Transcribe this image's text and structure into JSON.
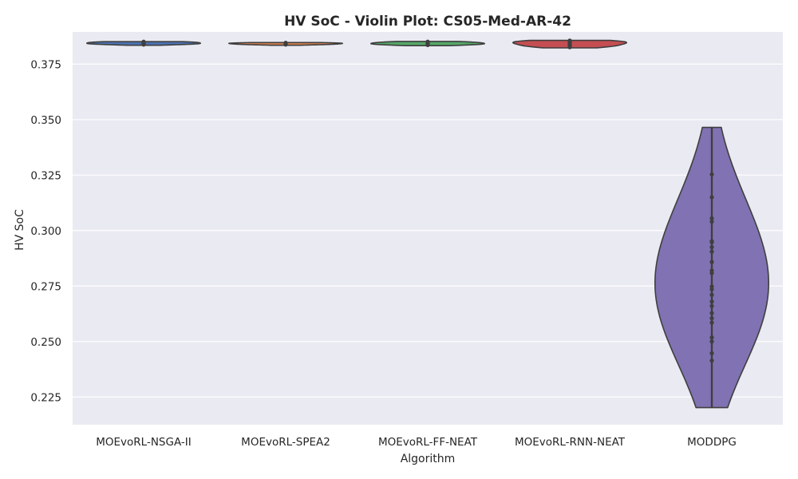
{
  "chart_data": {
    "type": "violin",
    "title": "HV SoC - Violin Plot: CS05-Med-AR-42",
    "xlabel": "Algorithm",
    "ylabel": "HV SoC",
    "ylim": [
      0.2125,
      0.3895
    ],
    "yticks": [
      "0.225",
      "0.250",
      "0.275",
      "0.300",
      "0.325",
      "0.350",
      "0.375"
    ],
    "grid": true,
    "background": "#eaeaf2",
    "categories": [
      "MOEvoRL-NSGA-II",
      "MOEvoRL-SPEA2",
      "MOEvoRL-FF-NEAT",
      "MOEvoRL-RNN-NEAT",
      "MODDPG"
    ],
    "series": [
      {
        "category": "MOEvoRL-NSGA-II",
        "color": "#4c72b0",
        "min": 0.3835,
        "max": 0.3851,
        "points": [
          0.3838,
          0.3841,
          0.3843,
          0.3846,
          0.3849,
          0.3851
        ]
      },
      {
        "category": "MOEvoRL-SPEA2",
        "color": "#dd8452",
        "min": 0.3835,
        "max": 0.3847,
        "points": [
          0.3838,
          0.3841,
          0.3844,
          0.3846
        ]
      },
      {
        "category": "MOEvoRL-FF-NEAT",
        "color": "#55a868",
        "min": 0.3833,
        "max": 0.3852,
        "points": [
          0.3836,
          0.384,
          0.3843,
          0.3847,
          0.3851
        ]
      },
      {
        "category": "MOEvoRL-RNN-NEAT",
        "color": "#c44e52",
        "min": 0.3823,
        "max": 0.3857,
        "points": [
          0.3826,
          0.3833,
          0.384,
          0.3846,
          0.3852,
          0.3856
        ]
      },
      {
        "category": "MODDPG",
        "color": "#8172b3",
        "min": 0.2202,
        "max": 0.3465,
        "points": [
          0.2414,
          0.2447,
          0.25,
          0.2518,
          0.2585,
          0.2605,
          0.2628,
          0.266,
          0.268,
          0.271,
          0.2735,
          0.2748,
          0.2808,
          0.282,
          0.2858,
          0.2905,
          0.2925,
          0.2948,
          0.2952,
          0.304,
          0.3055,
          0.315,
          0.3253
        ]
      }
    ]
  }
}
